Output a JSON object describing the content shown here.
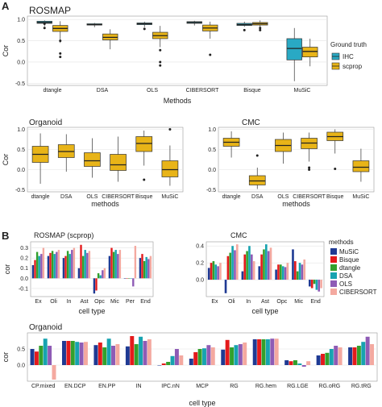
{
  "panel_labels": [
    "A",
    "B"
  ],
  "colors": {
    "IHC": "#29a9c4",
    "scprop": "#e8b418",
    "MuSiC": "#1f3a93",
    "Bisque": "#e41a1c",
    "dtangle": "#33a02c",
    "DSA": "#17a3b0",
    "OLS": "#8e5bb5",
    "CIBERSORT": "#f4a9a0"
  },
  "chart_data": [
    {
      "id": "rosmap_box",
      "type": "boxplot",
      "title": "ROSMAP",
      "xlabel": "Methods",
      "ylabel": "Cor",
      "ylim": [
        -0.55,
        1.08
      ],
      "yticks": [
        "1.0",
        "0.5",
        "0.0",
        "-0.5"
      ],
      "ytick_values": [
        1.0,
        0.5,
        0.0,
        -0.5
      ],
      "categories": [
        "dtangle",
        "DSA",
        "OLS",
        "CIBERSORT",
        "Bisque",
        "MuSiC"
      ],
      "legend_title": "Ground truth",
      "legend": [
        "IHC",
        "scprop"
      ],
      "series": [
        {
          "name": "IHC",
          "boxes": [
            {
              "min": 0.84,
              "q1": 0.91,
              "med": 0.93,
              "q3": 0.96,
              "max": 0.98,
              "out": [
                0.8,
                0.9
              ]
            },
            {
              "min": 0.82,
              "q1": 0.87,
              "med": 0.88,
              "q3": 0.9,
              "max": 0.92,
              "out": []
            },
            {
              "min": 0.82,
              "q1": 0.88,
              "med": 0.9,
              "q3": 0.92,
              "max": 0.95,
              "out": [
                0.78
              ]
            },
            {
              "min": 0.86,
              "q1": 0.91,
              "med": 0.93,
              "q3": 0.95,
              "max": 0.97,
              "out": []
            },
            {
              "min": 0.83,
              "q1": 0.86,
              "med": 0.88,
              "q3": 0.91,
              "max": 0.95,
              "out": [
                0.75
              ]
            },
            {
              "min": -0.45,
              "q1": 0.05,
              "med": 0.32,
              "q3": 0.55,
              "max": 0.8,
              "out": []
            }
          ]
        },
        {
          "name": "scprop",
          "boxes": [
            {
              "min": 0.45,
              "q1": 0.72,
              "med": 0.79,
              "q3": 0.86,
              "max": 0.96,
              "out": [
                0.2,
                0.12,
                0.5
              ]
            },
            {
              "min": 0.3,
              "q1": 0.52,
              "med": 0.58,
              "q3": 0.66,
              "max": 0.77,
              "out": []
            },
            {
              "min": 0.35,
              "q1": 0.55,
              "med": 0.62,
              "q3": 0.7,
              "max": 0.85,
              "out": [
                0.0,
                -0.08,
                0.28
              ]
            },
            {
              "min": 0.55,
              "q1": 0.73,
              "med": 0.8,
              "q3": 0.87,
              "max": 0.95,
              "out": [
                0.17
              ]
            },
            {
              "min": 0.8,
              "q1": 0.87,
              "med": 0.9,
              "q3": 0.93,
              "max": 0.98,
              "out": [
                0.75,
                0.8
              ]
            },
            {
              "min": -0.1,
              "q1": 0.12,
              "med": 0.25,
              "q3": 0.35,
              "max": 0.55,
              "out": []
            }
          ]
        }
      ]
    },
    {
      "id": "organoid_box",
      "type": "boxplot",
      "title": "Organoid",
      "xlabel": "methods",
      "ylabel": "Cor",
      "ylim": [
        -0.55,
        1.05
      ],
      "yticks": [
        "1.0",
        "0.5",
        "0.0",
        "-0.5"
      ],
      "ytick_values": [
        1.0,
        0.5,
        0.0,
        -0.5
      ],
      "categories": [
        "dtangle",
        "DSA",
        "OLS",
        "CIBERSORT",
        "Bisque",
        "MuSiC"
      ],
      "series": [
        {
          "name": "",
          "boxes": [
            {
              "min": -0.35,
              "q1": 0.18,
              "med": 0.38,
              "q3": 0.58,
              "max": 0.9,
              "out": []
            },
            {
              "min": -0.05,
              "q1": 0.3,
              "med": 0.45,
              "q3": 0.62,
              "max": 0.88,
              "out": []
            },
            {
              "min": -0.2,
              "q1": 0.08,
              "med": 0.22,
              "q3": 0.42,
              "max": 0.78,
              "out": []
            },
            {
              "min": -0.3,
              "q1": -0.02,
              "med": 0.12,
              "q3": 0.38,
              "max": 0.82,
              "out": []
            },
            {
              "min": 0.1,
              "q1": 0.45,
              "med": 0.65,
              "q3": 0.82,
              "max": 0.97,
              "out": [
                -0.25
              ]
            },
            {
              "min": -0.4,
              "q1": -0.18,
              "med": 0.0,
              "q3": 0.22,
              "max": 0.6,
              "out": [
                1.0
              ]
            }
          ]
        }
      ]
    },
    {
      "id": "cmc_box",
      "type": "boxplot",
      "title": "CMC",
      "xlabel": "methods",
      "ylabel": "",
      "ylim": [
        -0.55,
        1.05
      ],
      "yticks": [
        "1.0",
        "0.5",
        "0.0",
        "-0.5"
      ],
      "ytick_values": [
        1.0,
        0.5,
        0.0,
        -0.5
      ],
      "categories": [
        "dtangle",
        "DSA",
        "OLS",
        "CIBERSORT",
        "Bisque",
        "MuSiC"
      ],
      "series": [
        {
          "name": "",
          "boxes": [
            {
              "min": 0.3,
              "q1": 0.58,
              "med": 0.68,
              "q3": 0.78,
              "max": 0.95,
              "out": []
            },
            {
              "min": -0.48,
              "q1": -0.38,
              "med": -0.28,
              "q3": -0.15,
              "max": 0.05,
              "out": [
                0.35
              ]
            },
            {
              "min": 0.15,
              "q1": 0.45,
              "med": 0.6,
              "q3": 0.75,
              "max": 0.92,
              "out": []
            },
            {
              "min": 0.2,
              "q1": 0.52,
              "med": 0.66,
              "q3": 0.78,
              "max": 0.92,
              "out": [
                0.0,
                0.05
              ]
            },
            {
              "min": 0.4,
              "q1": 0.72,
              "med": 0.82,
              "q3": 0.93,
              "max": 1.0,
              "out": [
                0.02
              ]
            },
            {
              "min": -0.3,
              "q1": -0.05,
              "med": 0.06,
              "q3": 0.22,
              "max": 0.52,
              "out": []
            }
          ]
        }
      ]
    },
    {
      "id": "rosmap_bar",
      "type": "bar",
      "title": "ROSMAP (scprop)",
      "xlabel": "cell type",
      "ylabel": "cor",
      "ylim": [
        -0.18,
        0.36
      ],
      "yticks": [
        "0.3",
        "0.2",
        "0.1",
        "0.0",
        "-0.1"
      ],
      "ytick_values": [
        0.3,
        0.2,
        0.1,
        0.0,
        -0.1
      ],
      "categories": [
        "Ex",
        "Oli",
        "In",
        "Ast",
        "Opc",
        "Mic",
        "Per",
        "End"
      ],
      "series": [
        {
          "name": "MuSiC",
          "values": [
            0.13,
            0.22,
            0.2,
            0.1,
            -0.15,
            0.22,
            0.0,
            0.2
          ]
        },
        {
          "name": "Bisque",
          "values": [
            0.18,
            0.25,
            0.22,
            0.33,
            -0.12,
            0.3,
            0.0,
            0.24
          ]
        },
        {
          "name": "dtangle",
          "values": [
            0.26,
            0.27,
            0.27,
            0.22,
            0.05,
            0.26,
            0.0,
            0.17
          ]
        },
        {
          "name": "DSA",
          "values": [
            0.22,
            0.24,
            0.24,
            0.28,
            0.03,
            0.28,
            0.0,
            0.21
          ]
        },
        {
          "name": "OLS",
          "values": [
            0.24,
            0.26,
            0.28,
            0.25,
            0.08,
            0.24,
            -0.08,
            0.19
          ]
        },
        {
          "name": "CIBERSORT",
          "values": [
            0.3,
            0.28,
            0.3,
            0.27,
            0.1,
            0.28,
            0.32,
            0.22
          ]
        }
      ]
    },
    {
      "id": "cmc_bar",
      "type": "bar",
      "title": "CMC",
      "xlabel": "cell type",
      "ylabel": "",
      "ylim": [
        -0.2,
        0.45
      ],
      "yticks": [
        "0.4",
        "0.2",
        "0.0"
      ],
      "ytick_values": [
        0.4,
        0.2,
        0.0
      ],
      "categories": [
        "Ex",
        "Oli",
        "In",
        "Ast",
        "Opc",
        "Mic",
        "End"
      ],
      "legend_title": "methods",
      "legend": [
        "MuSiC",
        "Bisque",
        "dtangle",
        "DSA",
        "OLS",
        "CIBERSORT"
      ],
      "series": [
        {
          "name": "MuSiC",
          "values": [
            0.14,
            -0.16,
            0.1,
            0.16,
            0.12,
            0.36,
            -0.08
          ]
        },
        {
          "name": "Bisque",
          "values": [
            0.2,
            0.28,
            0.3,
            0.3,
            0.18,
            0.22,
            -0.1
          ]
        },
        {
          "name": "dtangle",
          "values": [
            0.22,
            0.32,
            0.34,
            0.36,
            0.18,
            0.1,
            -0.05
          ]
        },
        {
          "name": "DSA",
          "values": [
            0.18,
            0.4,
            0.4,
            0.42,
            0.16,
            0.2,
            -0.12
          ]
        },
        {
          "name": "OLS",
          "values": [
            0.16,
            0.35,
            0.3,
            0.34,
            0.15,
            0.18,
            -0.14
          ]
        },
        {
          "name": "CIBERSORT",
          "values": [
            0.2,
            0.42,
            0.22,
            0.38,
            0.2,
            0.24,
            -0.1
          ]
        }
      ]
    },
    {
      "id": "organoid_bar",
      "type": "bar",
      "title": "Organoid",
      "xlabel": "cell type",
      "ylabel": "cor",
      "ylim": [
        -0.5,
        1.0
      ],
      "yticks": [
        "0.5",
        "0.0"
      ],
      "ytick_values": [
        0.5,
        0.0
      ],
      "categories": [
        "CP.mixed",
        "EN.DCP",
        "EN.PP",
        "IN",
        "IPC.nN",
        "MCP",
        "RG",
        "RG.hem",
        "RG.LGE",
        "RG.oRG",
        "RG.tRG"
      ],
      "series": [
        {
          "name": "MuSiC",
          "values": [
            0.5,
            0.75,
            0.62,
            0.58,
            0.0,
            0.2,
            0.48,
            0.8,
            0.15,
            0.3,
            0.55
          ]
        },
        {
          "name": "Bisque",
          "values": [
            0.42,
            0.75,
            0.7,
            0.9,
            0.05,
            0.4,
            0.78,
            0.8,
            0.12,
            0.35,
            0.55
          ]
        },
        {
          "name": "dtangle",
          "values": [
            0.6,
            0.75,
            0.55,
            0.65,
            0.1,
            0.5,
            0.55,
            0.8,
            0.15,
            0.38,
            0.6
          ]
        },
        {
          "name": "DSA",
          "values": [
            0.82,
            0.72,
            0.82,
            0.88,
            0.28,
            0.52,
            0.62,
            0.8,
            0.05,
            0.5,
            0.72
          ]
        },
        {
          "name": "OLS",
          "values": [
            0.6,
            0.7,
            0.6,
            0.75,
            0.5,
            0.62,
            0.65,
            0.82,
            -0.05,
            0.6,
            0.88
          ]
        },
        {
          "name": "CIBERSORT",
          "values": [
            -0.45,
            0.72,
            0.65,
            0.8,
            0.3,
            0.55,
            0.7,
            0.82,
            0.12,
            0.55,
            0.65
          ]
        }
      ]
    }
  ]
}
